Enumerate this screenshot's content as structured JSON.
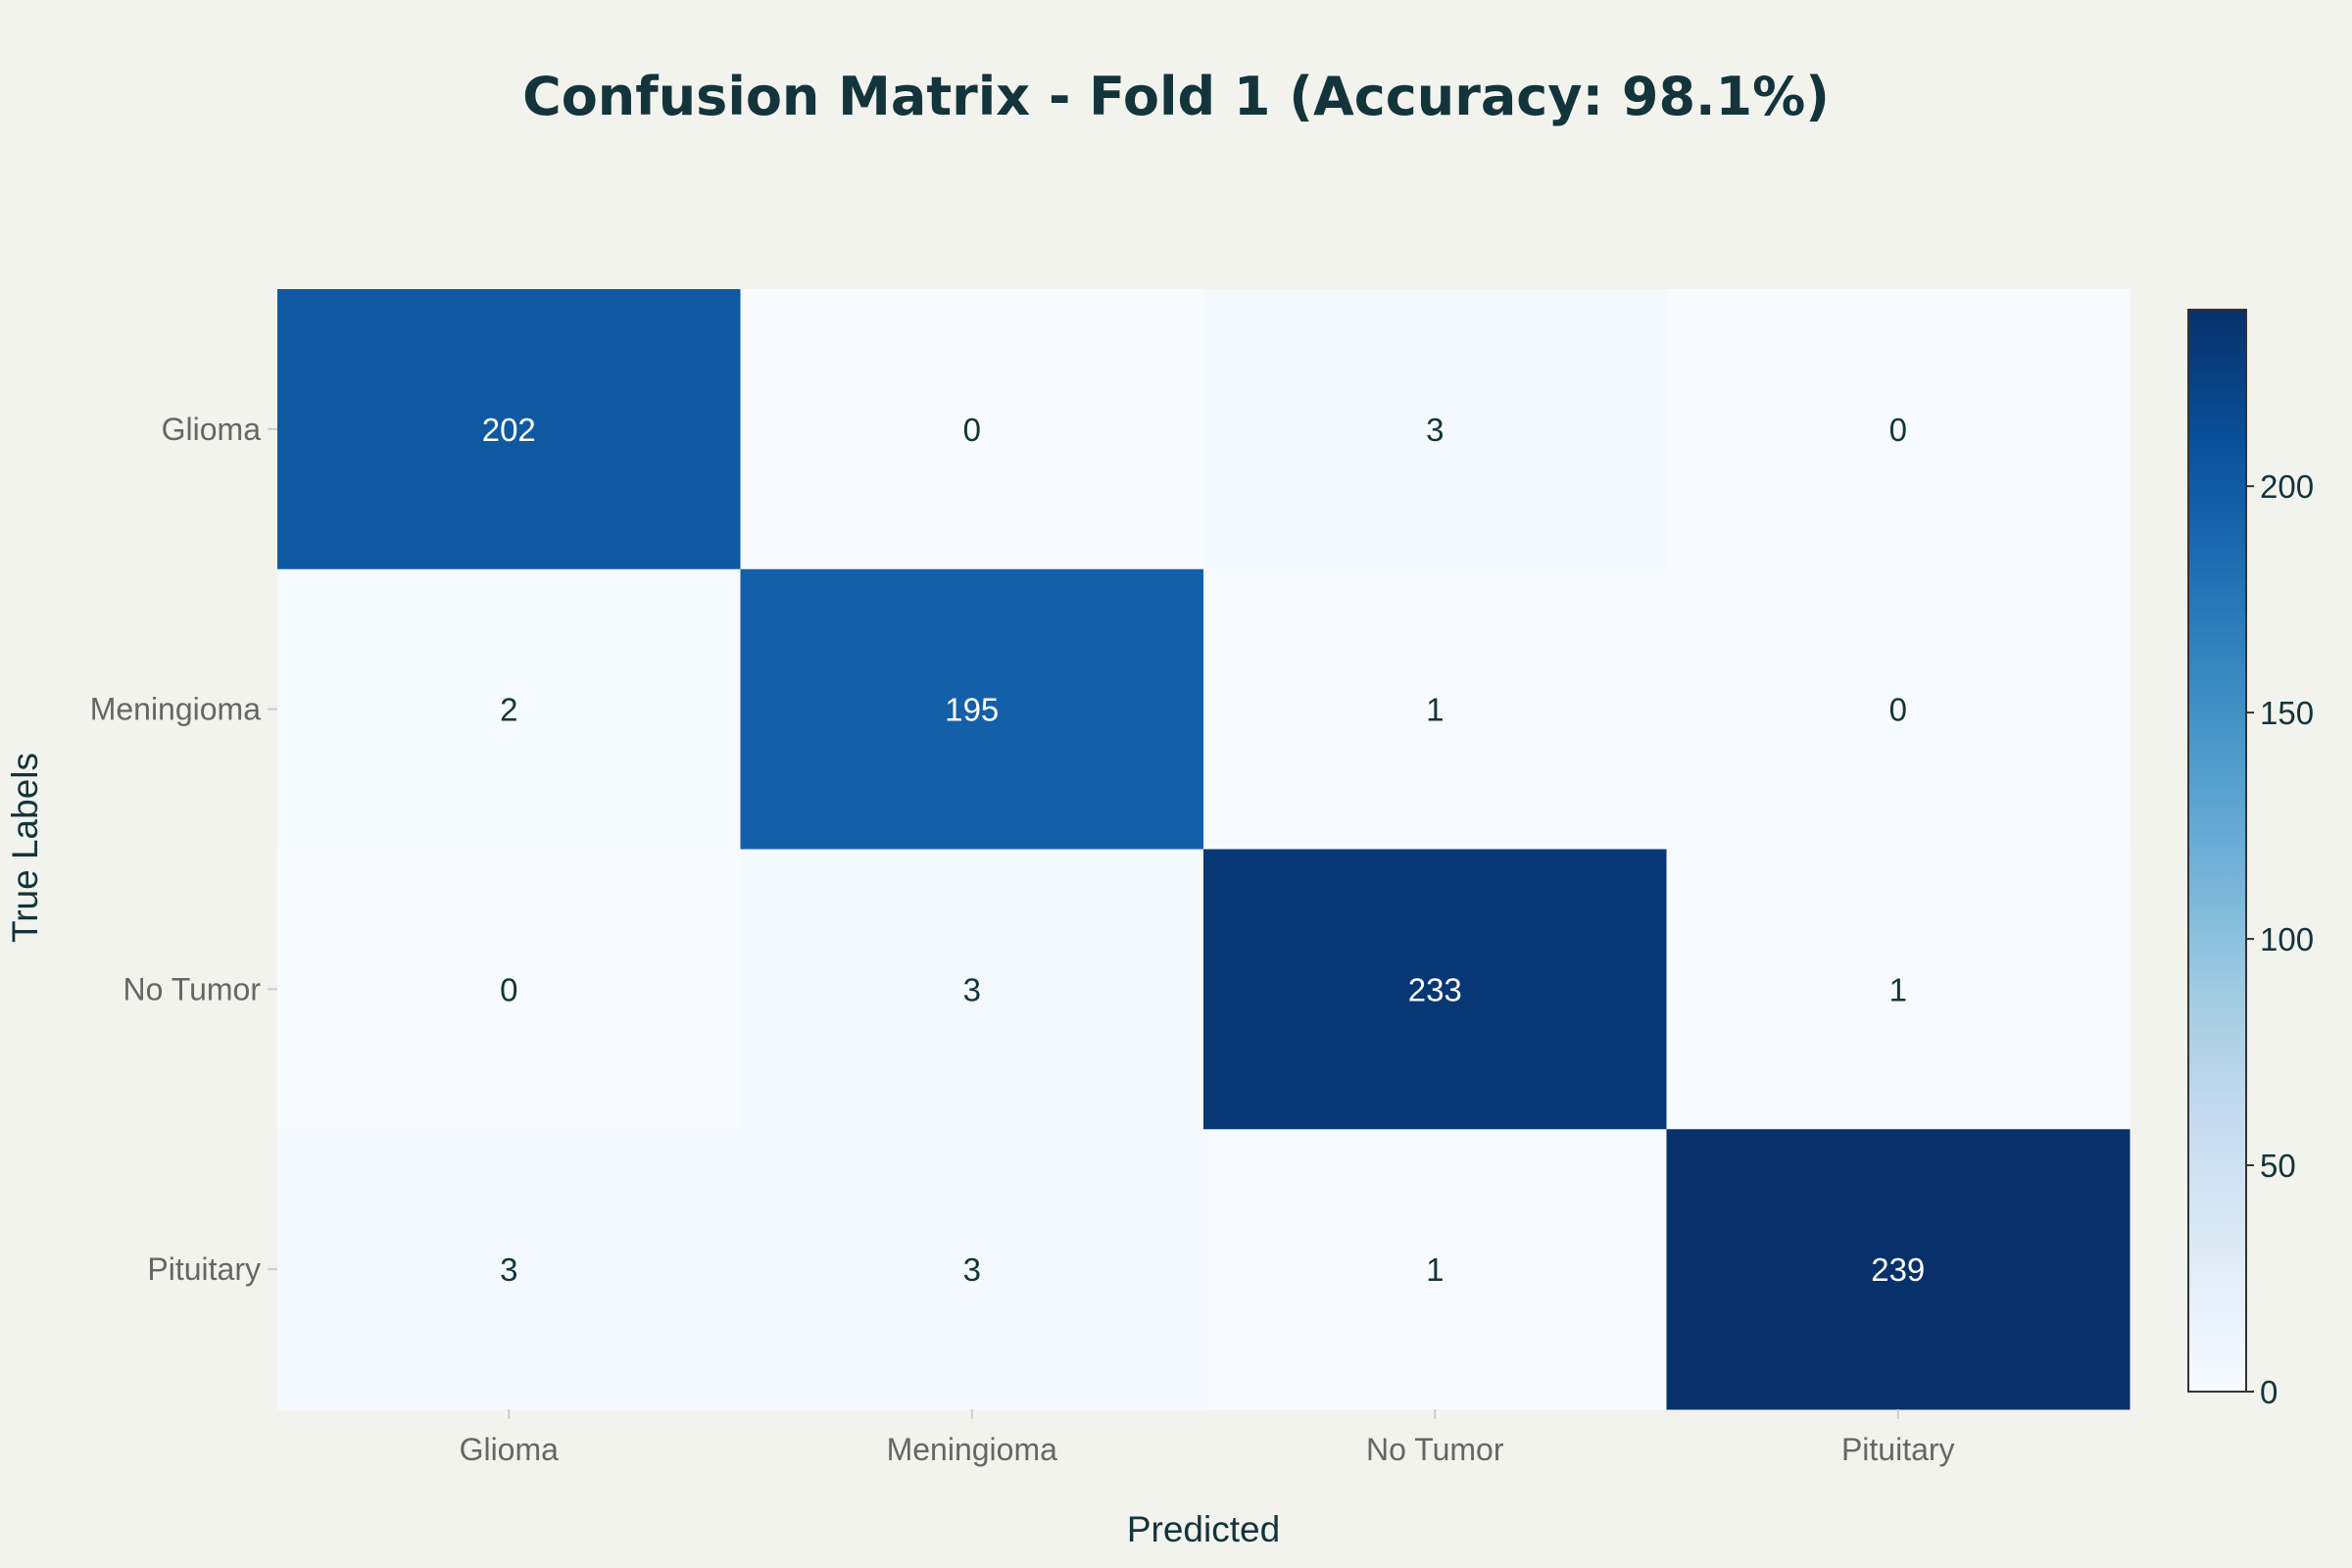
{
  "chart_data": {
    "type": "heatmap",
    "title": "Confusion Matrix - Fold 1 (Accuracy: 98.1%)",
    "xlabel": "Predicted",
    "ylabel": "True Labels",
    "x_categories": [
      "Glioma",
      "Meningioma",
      "No Tumor",
      "Pituitary"
    ],
    "y_categories": [
      "Glioma",
      "Meningioma",
      "No Tumor",
      "Pituitary"
    ],
    "values": [
      [
        202,
        0,
        3,
        0
      ],
      [
        2,
        195,
        1,
        0
      ],
      [
        0,
        3,
        233,
        1
      ],
      [
        3,
        3,
        1,
        239
      ]
    ],
    "colorscale": "Blues",
    "zlim": [
      0,
      239
    ],
    "colorbar_ticks": [
      0,
      50,
      100,
      150,
      200
    ],
    "colors": {
      "background": "#f3f3ee",
      "text_dark": "#13343b",
      "tick_gray": "#666666",
      "cell_text_light": "#ffffff"
    }
  }
}
